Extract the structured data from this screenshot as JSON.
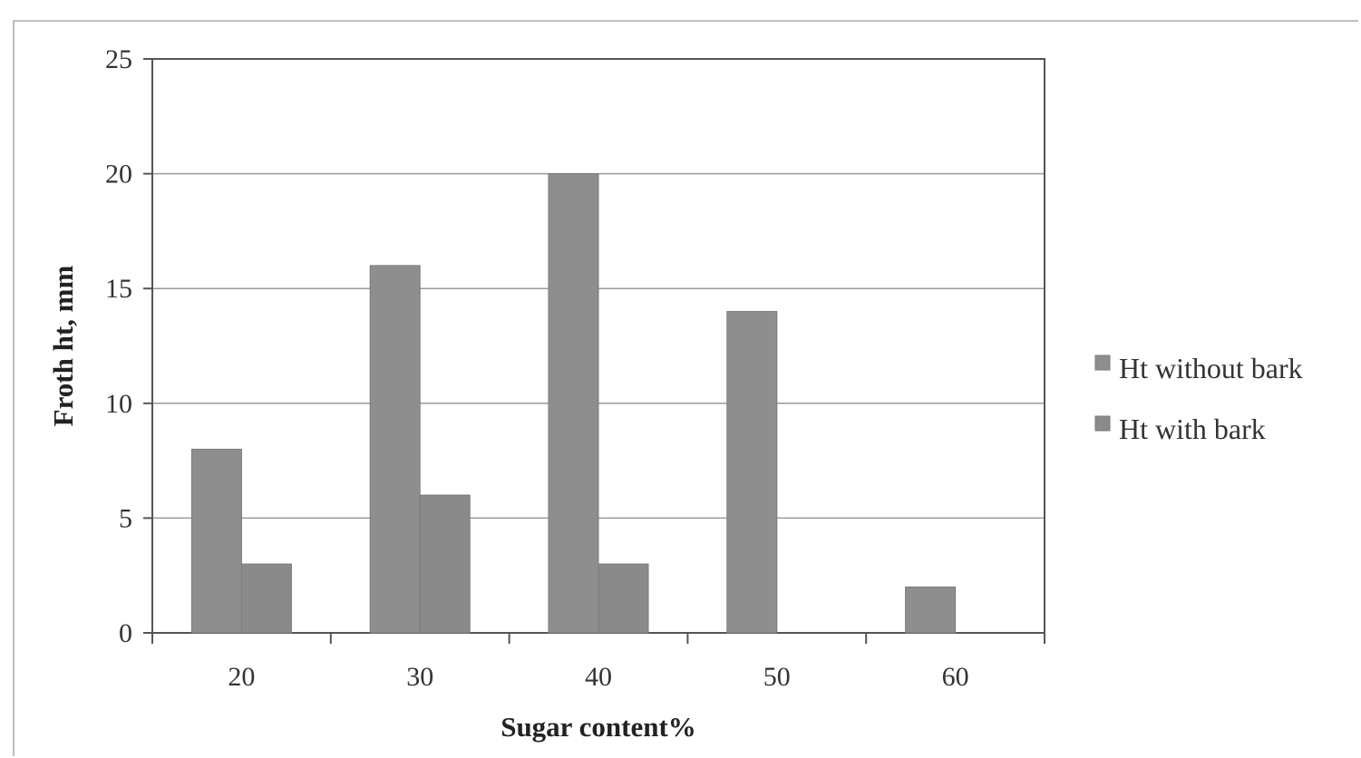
{
  "chart_data": {
    "type": "bar",
    "title": "",
    "xlabel": "Sugar content%",
    "ylabel": "Froth ht, mm",
    "categories": [
      "20",
      "30",
      "40",
      "50",
      "60"
    ],
    "series": [
      {
        "name": "Ht without bark",
        "values": [
          8,
          16,
          20,
          14,
          2
        ],
        "color": "#8e8e8e"
      },
      {
        "name": "Ht with bark",
        "values": [
          3,
          6,
          3,
          0,
          0
        ],
        "color": "#8a8a8a"
      }
    ],
    "ylim": [
      0,
      25
    ],
    "yticks": [
      0,
      5,
      10,
      15,
      20,
      25
    ],
    "grid": true,
    "legend": "right"
  }
}
